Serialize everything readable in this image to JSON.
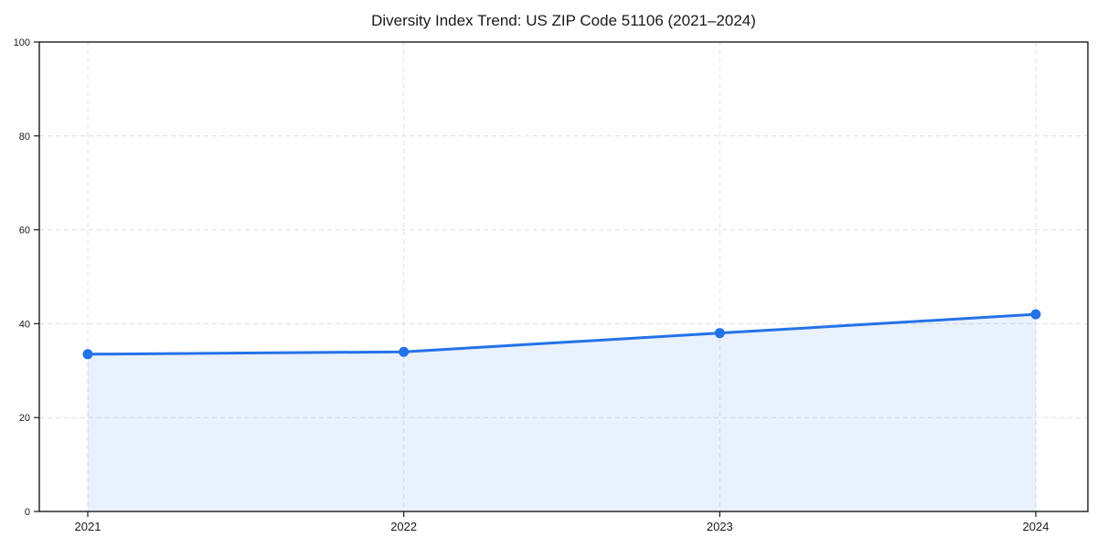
{
  "chart_data": {
    "type": "area",
    "title": "Diversity Index Trend: US ZIP Code 51106 (2021–2024)",
    "categories": [
      "2021",
      "2022",
      "2023",
      "2024"
    ],
    "series": [
      {
        "name": "Diversity Index",
        "values": [
          33.5,
          34,
          38,
          42
        ]
      }
    ],
    "xlabel": "",
    "ylabel": "",
    "ylim": [
      0,
      100
    ],
    "yticks": [
      0,
      20,
      40,
      60,
      80,
      100
    ],
    "grid": true,
    "grid_style": "dashed",
    "legend": "none",
    "marker": "circle",
    "fill_opacity": 0.1,
    "colors": {
      "line": "#2472e8",
      "marker": "#2472e8",
      "grid": "#dedede",
      "axis": "#1a1a1a",
      "text": "#1a1a1a",
      "background": "#ffffff"
    }
  }
}
